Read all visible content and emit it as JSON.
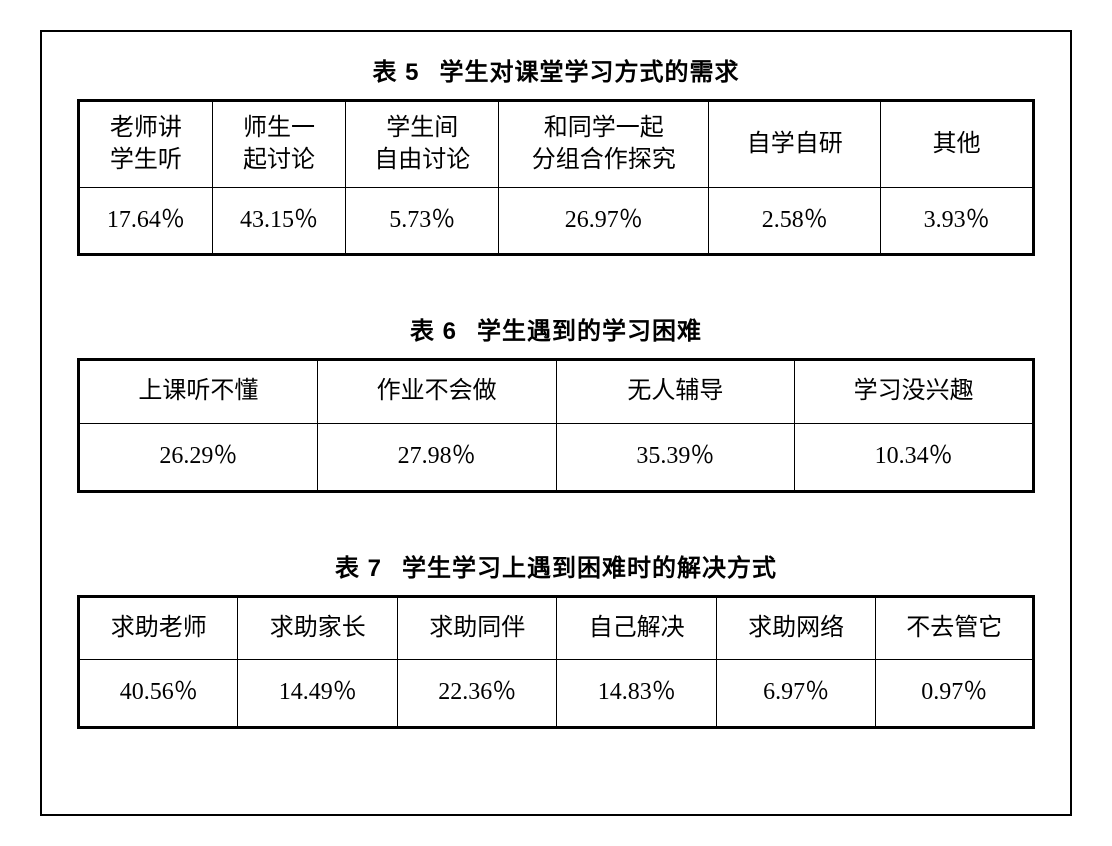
{
  "background_color": "#ffffff",
  "border_color": "#000000",
  "text_color": "#000000",
  "caption_fontsize": 24,
  "cell_fontsize": 24,
  "tables": {
    "t5": {
      "number": "表 5",
      "title": "学生对课堂学习方式的需求",
      "headers": [
        "老师讲\n学生听",
        "师生一\n起讨论",
        "学生间\n自由讨论",
        "和同学一起\n分组合作探究",
        "自学自研",
        "其他"
      ],
      "values": [
        "17.64％",
        "43.15％",
        "5.73％",
        "26.97％",
        "2.58％",
        "3.93％"
      ],
      "col_widths": [
        "14%",
        "14%",
        "16%",
        "22%",
        "18%",
        "16%"
      ]
    },
    "t6": {
      "number": "表 6",
      "title": "学生遇到的学习困难",
      "headers": [
        "上课听不懂",
        "作业不会做",
        "无人辅导",
        "学习没兴趣"
      ],
      "values": [
        "26.29％",
        "27.98％",
        "35.39％",
        "10.34％"
      ],
      "col_widths": [
        "25%",
        "25%",
        "25%",
        "25%"
      ]
    },
    "t7": {
      "number": "表 7",
      "title": "学生学习上遇到困难时的解决方式",
      "headers": [
        "求助老师",
        "求助家长",
        "求助同伴",
        "自己解决",
        "求助网络",
        "不去管它"
      ],
      "values": [
        "40.56％",
        "14.49％",
        "22.36％",
        "14.83％",
        "6.97％",
        "0.97％"
      ],
      "col_widths": [
        "16.7%",
        "16.7%",
        "16.7%",
        "16.7%",
        "16.7%",
        "16.5%"
      ]
    }
  }
}
